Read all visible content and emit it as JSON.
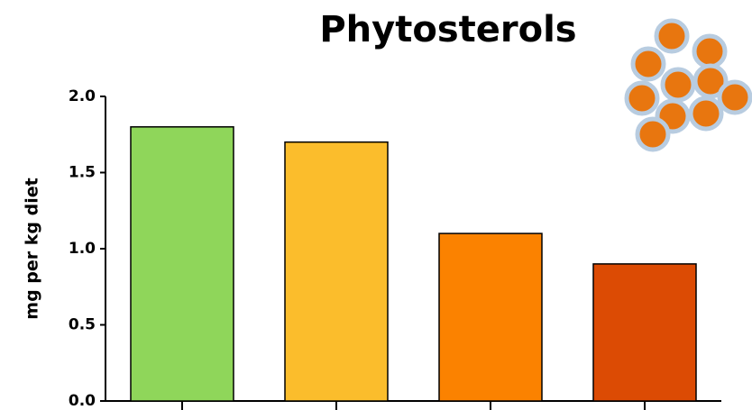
{
  "chart_data": {
    "type": "bar",
    "title": "Phytosterols",
    "y_label": "mg per kg diet",
    "categories": [
      null,
      null,
      null,
      null
    ],
    "values": [
      1.8,
      1.7,
      1.1,
      0.9
    ],
    "colors": [
      "#8fd65a",
      "#fbbd2c",
      "#fb8200",
      "#dc4b04"
    ],
    "ylim": [
      0,
      2
    ],
    "yticks": [
      {
        "value": 0,
        "label": "0.0"
      },
      0.5,
      {
        "value": 1,
        "label": "1.0"
      },
      1.5,
      {
        "value": 2,
        "label": "2.0"
      }
    ],
    "grid": false
  }
}
